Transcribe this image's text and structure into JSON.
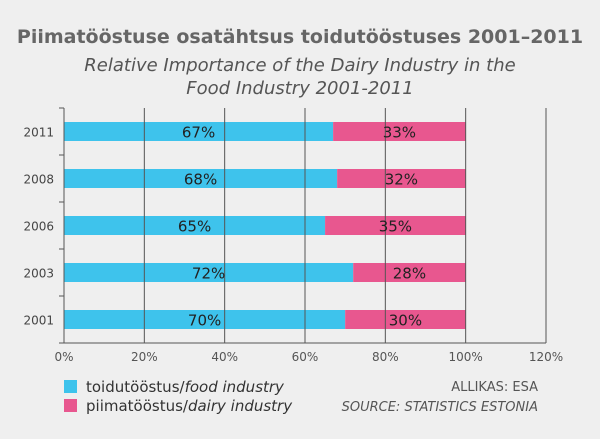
{
  "header": {
    "title": "Piimatööstuse osatähtsus toidutööstuses 2001–2011",
    "subtitle_line1": "Relative Importance of the Dairy Industry in the",
    "subtitle_line2": "Food Industry 2001-2011"
  },
  "legend": {
    "food_et": "toidutööstus/",
    "food_en": "food industry",
    "dairy_et": "piimatööstus/",
    "dairy_en": "dairy industry"
  },
  "source": {
    "et": "ALLIKAS: ESA",
    "en": "SOURCE: STATISTICS ESTONIA"
  },
  "colors": {
    "food": "#3ec3ec",
    "dairy": "#e8578f",
    "background": "#efefef",
    "gridline": "#555555"
  },
  "chart_data": {
    "type": "bar",
    "orientation": "horizontal",
    "stacked": true,
    "categories": [
      "2011",
      "2008",
      "2006",
      "2003",
      "2001"
    ],
    "series": [
      {
        "name": "toidutööstus/food industry",
        "values": [
          67,
          68,
          65,
          72,
          70
        ],
        "labels": [
          "67%",
          "68%",
          "65%",
          "72%",
          "70%"
        ]
      },
      {
        "name": "piimatööstus/dairy industry",
        "values": [
          33,
          32,
          35,
          28,
          30
        ],
        "labels": [
          "33%",
          "32%",
          "35%",
          "28%",
          "30%"
        ]
      }
    ],
    "xlim": [
      0,
      120
    ],
    "x_ticks": [
      0,
      20,
      40,
      60,
      80,
      100,
      120
    ],
    "x_tick_labels": [
      "0%",
      "20%",
      "40%",
      "60%",
      "80%",
      "100%",
      "120%"
    ],
    "grid": true,
    "legend_position": "bottom-left"
  }
}
